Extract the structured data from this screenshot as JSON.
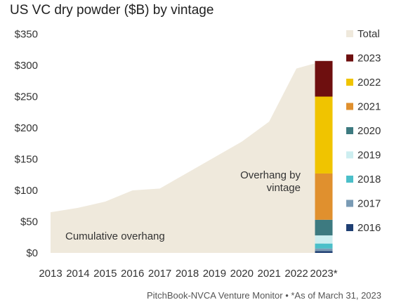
{
  "title": "US VC dry powder ($B) by vintage",
  "footnote": "PitchBook-NVCA Venture Monitor  •  *As of March 31, 2023",
  "annotations": {
    "cumulative": "Cumulative overhang",
    "vintage_line1": "Overhang by",
    "vintage_line2": "vintage"
  },
  "colors": {
    "area": "#efe9dc",
    "2023": "#6e0f0f",
    "2022": "#f0c400",
    "2021": "#e0902e",
    "2020": "#3d7a80",
    "2019": "#cdeef0",
    "2018": "#4bbfc9",
    "2017": "#7a9bb5",
    "2016": "#1f3f73"
  },
  "chart_data": {
    "type": "area",
    "title": "US VC dry powder ($B) by vintage",
    "x": [
      "2013",
      "2014",
      "2015",
      "2016",
      "2017",
      "2018",
      "2019",
      "2020",
      "2021",
      "2022",
      "2023*"
    ],
    "ylim": [
      0,
      350
    ],
    "yticks": [
      0,
      50,
      100,
      150,
      200,
      250,
      300,
      350
    ],
    "ytick_labels": [
      "$0",
      "$50",
      "$100",
      "$150",
      "$200",
      "$250",
      "$300",
      "$350"
    ],
    "grid": false,
    "legend_position": "right",
    "series": [
      {
        "name": "Total",
        "values": [
          65,
          72,
          82,
          100,
          103,
          128,
          153,
          178,
          210,
          295,
          307
        ]
      }
    ],
    "stacked_bar": {
      "category": "2023*",
      "segments": [
        {
          "name": "2016",
          "value": 3
        },
        {
          "name": "2017",
          "value": 4
        },
        {
          "name": "2018",
          "value": 8
        },
        {
          "name": "2019",
          "value": 13
        },
        {
          "name": "2020",
          "value": 25
        },
        {
          "name": "2021",
          "value": 74
        },
        {
          "name": "2022",
          "value": 123
        },
        {
          "name": "2023",
          "value": 57
        }
      ]
    },
    "legend": [
      "Total",
      "2023",
      "2022",
      "2021",
      "2020",
      "2019",
      "2018",
      "2017",
      "2016"
    ]
  }
}
